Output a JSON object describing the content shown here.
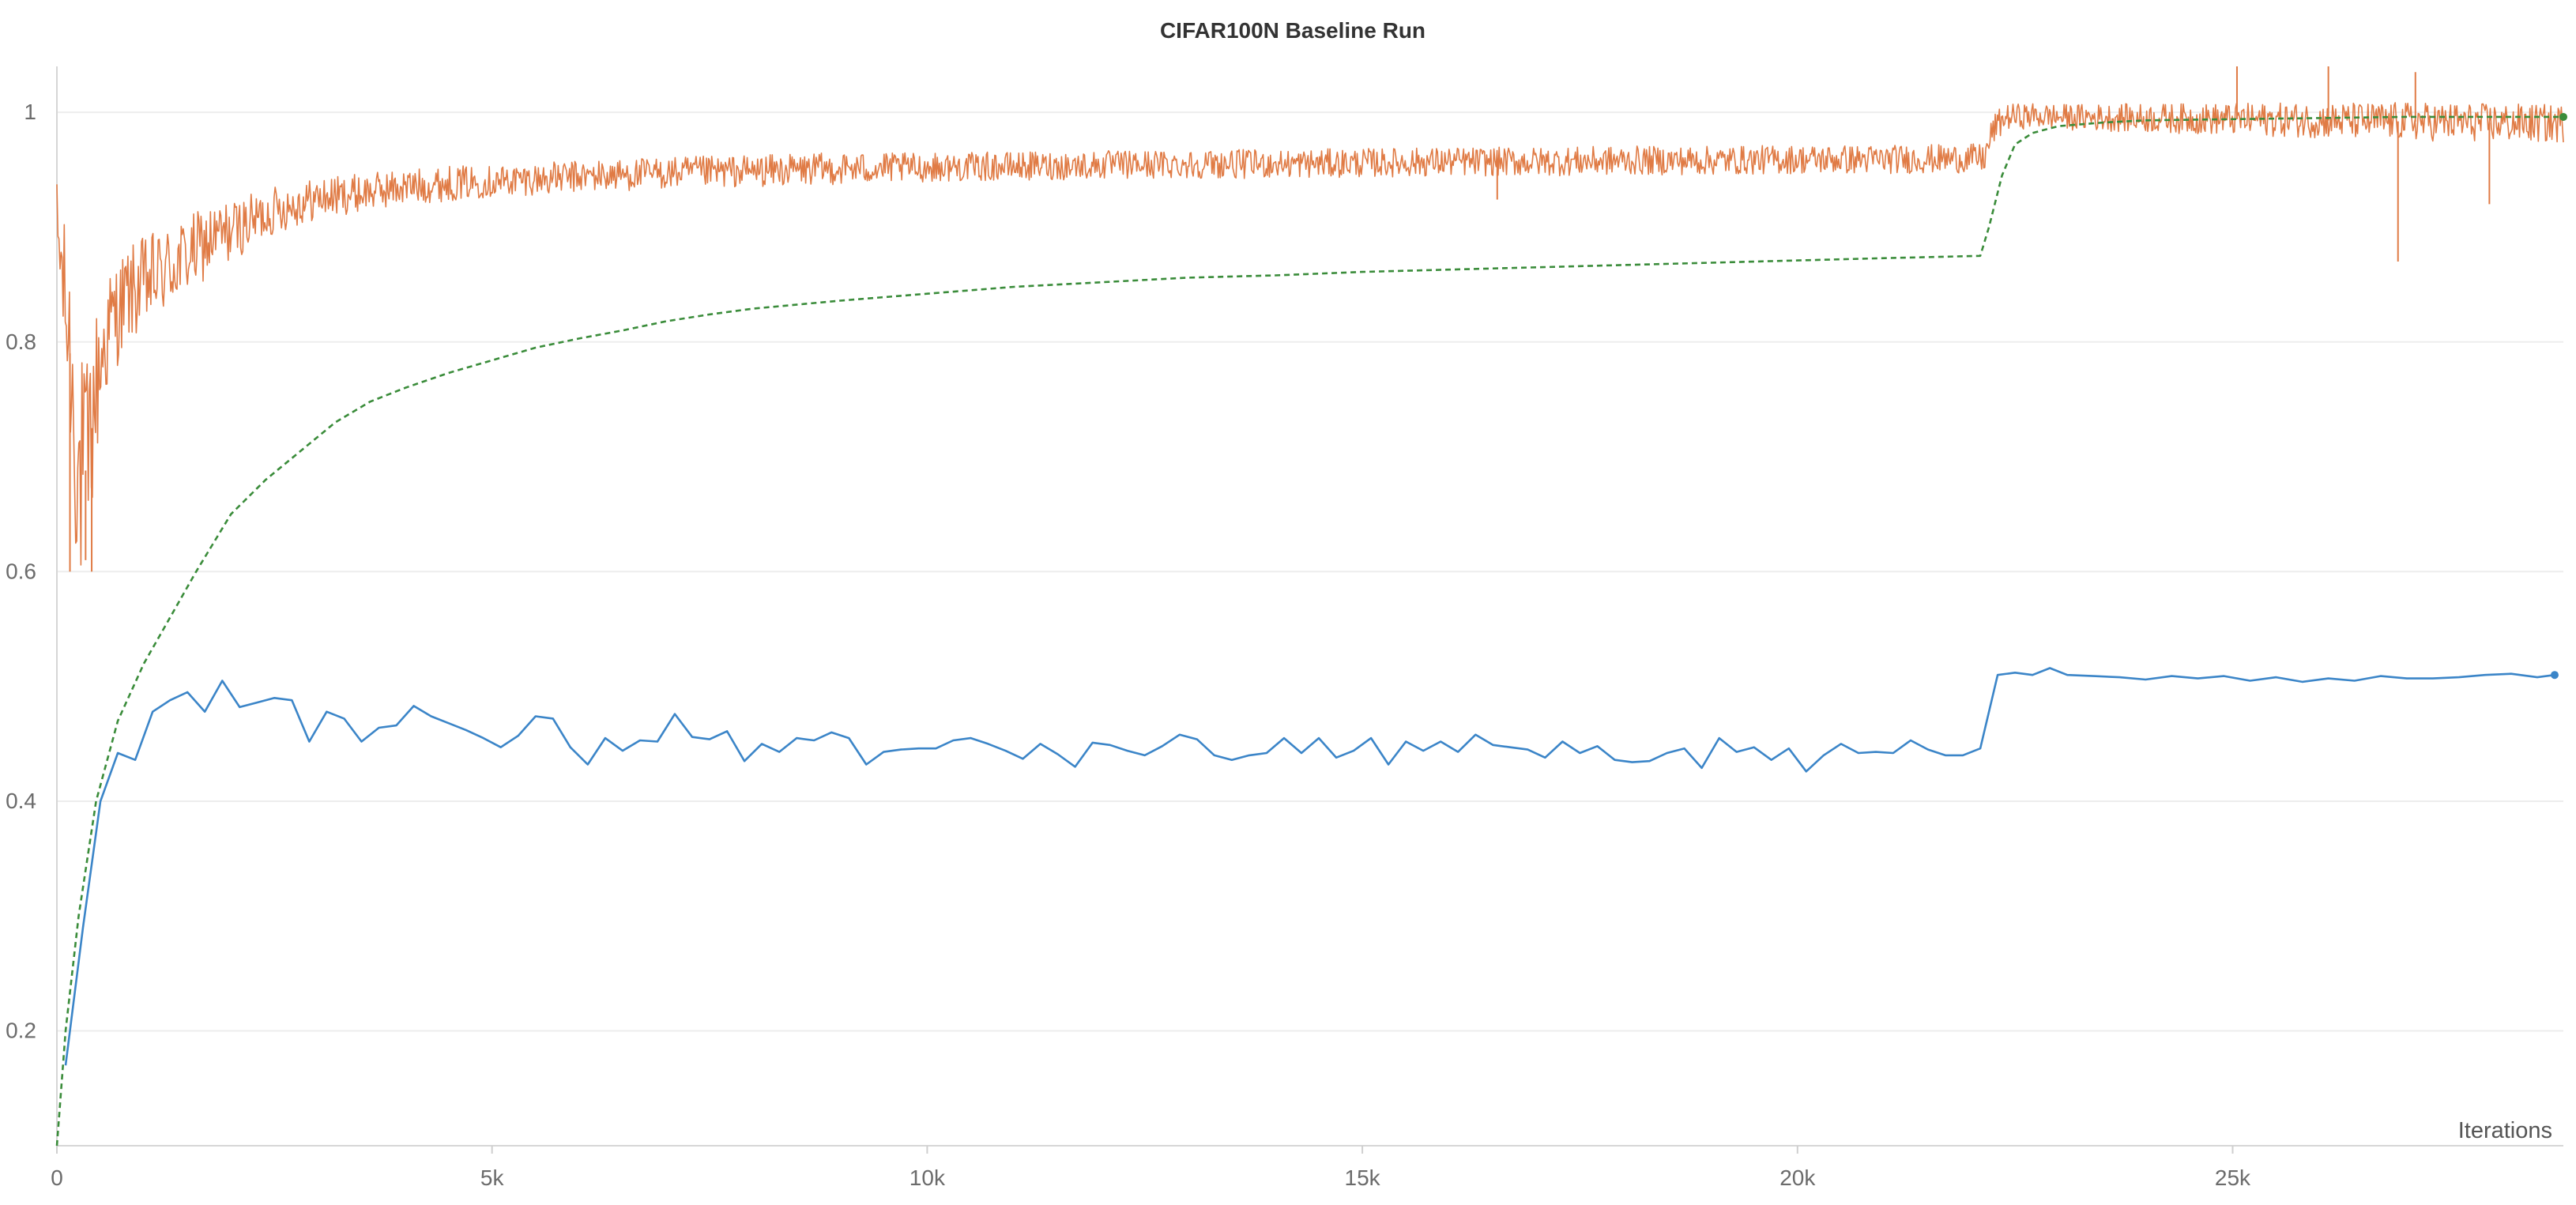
{
  "chart_data": {
    "type": "line",
    "title": "CIFAR100N Baseline Run",
    "xlabel": "Iterations",
    "ylabel": "",
    "xlim": [
      0,
      28800
    ],
    "ylim": [
      0.1,
      1.04
    ],
    "x_ticks": [
      0,
      5000,
      10000,
      15000,
      20000,
      25000
    ],
    "x_tick_labels": [
      "0",
      "5k",
      "10k",
      "15k",
      "20k",
      "25k"
    ],
    "y_ticks": [
      0.2,
      0.4,
      0.6,
      0.8,
      1.0
    ],
    "y_tick_labels": [
      "0.2",
      "0.4",
      "0.6",
      "0.8",
      "1"
    ],
    "grid": "horizontal",
    "legend": "none",
    "series": [
      {
        "style": "dashed",
        "color": "#3a8c3a",
        "x": [
          0,
          100,
          250,
          450,
          700,
          1000,
          1300,
          1600,
          2000,
          2400,
          2800,
          3200,
          3600,
          4000,
          4500,
          5000,
          5500,
          6000,
          6500,
          7000,
          7500,
          8000,
          9000,
          10000,
          11000,
          12000,
          13000,
          14000,
          15000,
          16000,
          17000,
          18000,
          19000,
          20000,
          21000,
          22100,
          22200,
          22350,
          22500,
          22700,
          23000,
          23500,
          24000,
          25000,
          26000,
          27000,
          28000,
          28800
        ],
        "y": [
          0.1,
          0.2,
          0.3,
          0.4,
          0.47,
          0.52,
          0.56,
          0.6,
          0.65,
          0.68,
          0.705,
          0.73,
          0.748,
          0.76,
          0.773,
          0.784,
          0.795,
          0.803,
          0.81,
          0.818,
          0.824,
          0.829,
          0.836,
          0.842,
          0.848,
          0.852,
          0.856,
          0.858,
          0.861,
          0.863,
          0.865,
          0.867,
          0.869,
          0.871,
          0.873,
          0.875,
          0.9,
          0.945,
          0.972,
          0.982,
          0.988,
          0.991,
          0.993,
          0.994,
          0.995,
          0.996,
          0.996,
          0.996
        ]
      },
      {
        "style": "solid",
        "color": "#3b85c8",
        "x": [
          100,
          300,
          500,
          700,
          900,
          1100,
          1300,
          1500,
          1700,
          1900,
          2100,
          2300,
          2500,
          2700,
          2900,
          3100,
          3300,
          3500,
          3700,
          3900,
          4100,
          4300,
          4500,
          4700,
          4900,
          5100,
          5300,
          5500,
          5700,
          5900,
          6100,
          6300,
          6500,
          6700,
          6900,
          7100,
          7300,
          7500,
          7700,
          7900,
          8100,
          8300,
          8500,
          8700,
          8900,
          9100,
          9300,
          9500,
          9700,
          9900,
          10100,
          10300,
          10500,
          10700,
          10900,
          11100,
          11300,
          11500,
          11700,
          11900,
          12100,
          12300,
          12500,
          12700,
          12900,
          13100,
          13300,
          13500,
          13700,
          13900,
          14100,
          14300,
          14500,
          14700,
          14900,
          15100,
          15300,
          15500,
          15700,
          15900,
          16100,
          16300,
          16500,
          16700,
          16900,
          17100,
          17300,
          17500,
          17700,
          17900,
          18100,
          18300,
          18500,
          18700,
          18900,
          19100,
          19300,
          19500,
          19700,
          19900,
          20100,
          20300,
          20500,
          20700,
          20900,
          21100,
          21300,
          21500,
          21700,
          21900,
          22100,
          22300,
          22500,
          22700,
          22900,
          23100,
          23400,
          23700,
          24000,
          24300,
          24600,
          24900,
          25200,
          25500,
          25800,
          26100,
          26400,
          26700,
          27000,
          27300,
          27600,
          27900,
          28200,
          28500,
          28700
        ],
        "y": [
          0.17,
          0.29,
          0.4,
          0.442,
          0.436,
          0.478,
          0.488,
          0.495,
          0.478,
          0.505,
          0.482,
          0.486,
          0.49,
          0.488,
          0.452,
          0.478,
          0.472,
          0.452,
          0.464,
          0.466,
          0.483,
          0.474,
          0.468,
          0.462,
          0.455,
          0.447,
          0.457,
          0.474,
          0.472,
          0.447,
          0.432,
          0.455,
          0.444,
          0.453,
          0.452,
          0.476,
          0.456,
          0.454,
          0.461,
          0.435,
          0.45,
          0.443,
          0.455,
          0.453,
          0.46,
          0.455,
          0.432,
          0.443,
          0.445,
          0.446,
          0.446,
          0.453,
          0.455,
          0.45,
          0.444,
          0.437,
          0.45,
          0.441,
          0.43,
          0.451,
          0.449,
          0.444,
          0.44,
          0.448,
          0.458,
          0.454,
          0.44,
          0.436,
          0.44,
          0.442,
          0.455,
          0.442,
          0.455,
          0.438,
          0.444,
          0.455,
          0.432,
          0.452,
          0.444,
          0.452,
          0.443,
          0.458,
          0.449,
          0.447,
          0.445,
          0.438,
          0.452,
          0.442,
          0.448,
          0.436,
          0.434,
          0.435,
          0.442,
          0.446,
          0.429,
          0.455,
          0.443,
          0.447,
          0.436,
          0.446,
          0.426,
          0.44,
          0.45,
          0.442,
          0.443,
          0.442,
          0.453,
          0.445,
          0.44,
          0.44,
          0.446,
          0.51,
          0.512,
          0.51,
          0.516,
          0.51,
          0.509,
          0.508,
          0.506,
          0.509,
          0.507,
          0.509,
          0.505,
          0.508,
          0.504,
          0.507,
          0.505,
          0.509,
          0.507,
          0.507,
          0.508,
          0.51,
          0.511,
          0.508,
          0.51
        ]
      },
      {
        "style": "dotted",
        "color": "#e07b45",
        "noisy": true,
        "x": [
          0,
          60,
          150,
          250,
          350,
          450,
          550,
          650,
          800,
          1000,
          1200,
          1500,
          1800,
          2100,
          2500,
          3000,
          3500,
          4000,
          4500,
          5000,
          6000,
          7000,
          8000,
          9000,
          10000,
          11000,
          12000,
          13000,
          14000,
          15000,
          16000,
          17000,
          18000,
          19000,
          20000,
          21000,
          22150,
          22250,
          22400,
          22700,
          23000,
          24000,
          25000,
          26000,
          27000,
          28000,
          28800
        ],
        "y": [
          0.9,
          0.86,
          0.79,
          0.68,
          0.69,
          0.76,
          0.8,
          0.82,
          0.84,
          0.85,
          0.86,
          0.875,
          0.89,
          0.9,
          0.915,
          0.925,
          0.93,
          0.935,
          0.938,
          0.94,
          0.944,
          0.947,
          0.949,
          0.951,
          0.952,
          0.953,
          0.954,
          0.955,
          0.955,
          0.956,
          0.957,
          0.957,
          0.958,
          0.958,
          0.959,
          0.959,
          0.96,
          0.985,
          0.996,
          0.997,
          0.996,
          0.995,
          0.994,
          0.993,
          0.992,
          0.991,
          0.99
        ],
        "amplitude": [
          0.03,
          0.04,
          0.06,
          0.08,
          0.07,
          0.05,
          0.04,
          0.035,
          0.03,
          0.03,
          0.028,
          0.025,
          0.022,
          0.018,
          0.015,
          0.013,
          0.012,
          0.011,
          0.011,
          0.01,
          0.01,
          0.01,
          0.01,
          0.01,
          0.009,
          0.009,
          0.009,
          0.009,
          0.009,
          0.009,
          0.009,
          0.009,
          0.009,
          0.009,
          0.009,
          0.009,
          0.009,
          0.01,
          0.008,
          0.008,
          0.008,
          0.009,
          0.01,
          0.011,
          0.012,
          0.012,
          0.012
        ],
        "spikes": [
          {
            "x": 150,
            "y": 0.6
          },
          {
            "x": 330,
            "y": 0.61
          },
          {
            "x": 400,
            "y": 0.6
          },
          {
            "x": 16550,
            "y": 0.924
          },
          {
            "x": 25050,
            "y": 1.04
          },
          {
            "x": 26100,
            "y": 1.04
          },
          {
            "x": 26900,
            "y": 0.87
          },
          {
            "x": 27100,
            "y": 1.035
          },
          {
            "x": 27950,
            "y": 0.92
          }
        ]
      }
    ]
  }
}
